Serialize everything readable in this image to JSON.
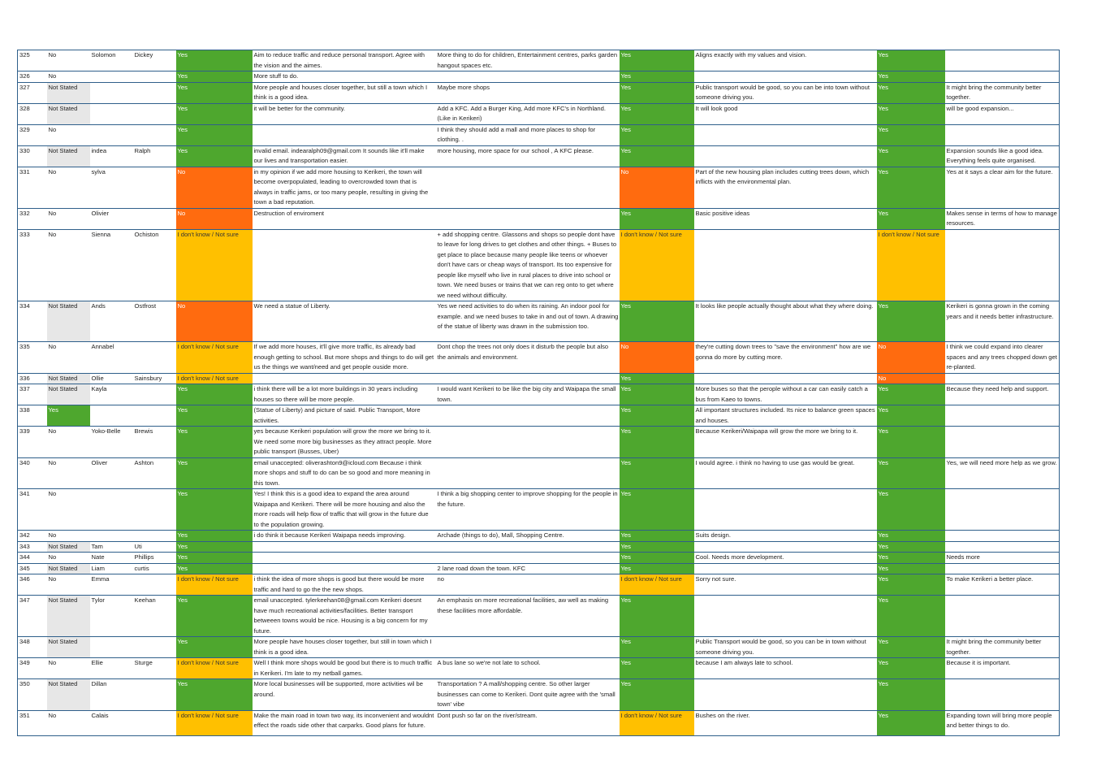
{
  "colors": {
    "yes": "#4ea72e",
    "no": "#ff6b0f",
    "unsure": "#ffc000",
    "not_stated": "#e7e7e7",
    "border": "#2f5f8a"
  },
  "rows": [
    {
      "c": [
        "325",
        "No",
        "Solomon",
        "Dickey",
        "Yes",
        "Aim to reduce traffic and reduce personal transport. Agree with the vision and the aimes.",
        "More thing to do for children, Entertainment centres, parks garden hangout spaces etc.",
        "Yes",
        "Aligns exactly with my values and vision.",
        "Yes",
        ""
      ]
    },
    {
      "c": [
        "326",
        "No",
        "",
        "",
        "Yes",
        "More stuff to do.",
        "",
        "Yes",
        "",
        "Yes",
        ""
      ]
    },
    {
      "c": [
        "327",
        "Not Stated",
        "",
        "",
        "Yes",
        "More people and houses closer together, but still a town which I think is a good idea.",
        "Maybe more shops",
        "Yes",
        "Public transport would be good, so you can be into town without someone driving you.",
        "Yes",
        "It might bring the community better together."
      ]
    },
    {
      "c": [
        "328",
        "Not Stated",
        "",
        "",
        "Yes",
        "it will be better for the community.",
        "Add a KFC. Add a Burger King, Add more KFC's in Northland. (Like in Kerikeri)",
        "Yes",
        "It will look good",
        "Yes",
        "will be good expansion..."
      ]
    },
    {
      "c": [
        "329",
        "No",
        "",
        "",
        "Yes",
        "",
        "I think they should add a mall and more places to shop for clothing. .",
        "Yes",
        "",
        "Yes",
        ""
      ]
    },
    {
      "c": [
        "330",
        "Not Stated",
        "indea",
        "Ralph",
        "Yes",
        "invalid email. indearalph09@gmail.com It sounds like it'll make our lives and transportation easier.",
        "more housing, more space for our school , A KFC please.",
        "Yes",
        "",
        "Yes",
        "Expansion sounds like a good idea. Everything feels quite organised."
      ]
    },
    {
      "c": [
        "331",
        "No",
        "sylva",
        "",
        "No",
        "in my opinion if we add more housing to Kerikeri, the town will become overpopulated, leading to overcrowded town that is always in traffic jams, or too many people, resulting in giving the town a bad reputation.",
        "",
        "No",
        "Part of the new housing plan includes cutting trees down, which inflicts with the environmental plan.",
        "Yes",
        "Yes at it says a clear aim for the future."
      ]
    },
    {
      "c": [
        "332",
        "No",
        "Olivier",
        "",
        "No",
        "Destruction of enviroment",
        "",
        "Yes",
        "Basic positive ideas",
        "Yes",
        "Makes sense in terms of how to manage resources."
      ]
    },
    {
      "c": [
        "333",
        "No",
        "Sienna",
        "Ochiston",
        "I don't know / Not sure",
        "",
        "+ add shopping centre. Glassons and shops so people dont have to leave for long drives to get clothes and other things. + Buses to get place to place because many people like teens or whoever don't have cars or cheap ways of transport. Its too expensive for people like myself who live in rural places to drive into school or town. We need buses or trains that we can reg onto to get where we need without difficulty.",
        "I don't know / Not sure",
        "",
        "I don't know / Not sure",
        ""
      ]
    },
    {
      "c": [
        "334",
        "Not Stated",
        "Ands",
        "Ostfrost",
        "No",
        "We need a statue of Liberty.",
        "Yes we need activities to do when its raining. An indoor pool for example. and we need buses to take in and out of town. A drawing of the statue of liberty was drawn in the submission too.",
        "Yes",
        "It looks like people actually thought about what they where doing.",
        "Yes",
        "Kerikeri is gonna grown in the coming years and it needs better infrastructure."
      ]
    },
    {
      "c": [
        "335",
        "No",
        "Annabel",
        "",
        "I don't know / Not sure",
        "If we add more houses, it'll give more traffic, its already bad enough getting to school. But more shops and things to do will get us the things we want/need and get people ouside more.",
        "Dont chop the trees not only does it disturb the people but also the animals and environment.",
        "No",
        "they're cutting down trees to \"save the environment\" how are we gonna do more by cutting more.",
        "No",
        "I think we could expand into clearer spaces and any trees chopped down get re-planted."
      ]
    },
    {
      "c": [
        "336",
        "Not Stated",
        "Ollie",
        "Sainsbury",
        "I don't know / Not sure",
        "",
        "",
        "Yes",
        "",
        "No",
        ""
      ]
    },
    {
      "c": [
        "337",
        "Not Stated",
        "Kayla",
        "",
        "Yes",
        "i think there will be a lot more buildings in 30 years including houses so there will be more people.",
        "I would want Kerikeri to be like the big city and Waipapa the small town.",
        "Yes",
        "More buses so that the perople without a car can easily catch a bus from Kaeo to towns.",
        "Yes",
        "Because they need help and support."
      ]
    },
    {
      "c": [
        "338",
        "Yes",
        "",
        "",
        "Yes",
        "(Statue of Liberty) and picture of said. Public Transport, More activities.",
        "",
        "Yes",
        "All important structures included. Its nice to balance green spaces and houses.",
        "Yes",
        ""
      ]
    },
    {
      "c": [
        "339",
        "No",
        "Yoko-Belle",
        "Brewis",
        "Yes",
        "yes because Kerikeri population will grow the more we bring to it. We need some more big businesses as they attract people. More public transport (Busses, Uber)",
        "",
        "Yes",
        "Because Kerikeri/Waipapa will grow the more we bring to it.",
        "Yes",
        ""
      ]
    },
    {
      "c": [
        "340",
        "No",
        "Oliver",
        "Ashton",
        "Yes",
        "email unaccepted: oliverashton9@icloud.com Because i think more shops and stuff to do can be so good and more meaning in this town.",
        "",
        "Yes",
        "I would agree. i think no having to use gas would be great.",
        "Yes",
        "Yes, we will need more help as we grow."
      ]
    },
    {
      "c": [
        "341",
        "No",
        "",
        "",
        "Yes",
        "Yes! I think this is a good idea to expand the area around Waipapa and Kerikeri. There will be more housing and also the more roads will help flow of traffic that will grow in the future due to the population growing.",
        "I think a big shopping center to improve shopping for the people in the future.",
        "Yes",
        "",
        "Yes",
        ""
      ]
    },
    {
      "c": [
        "342",
        "No",
        "",
        "",
        "Yes",
        "i do think it because Kerikeri Waipapa needs improving.",
        "Archade (things to do), Mall, Shopping Centre.",
        "Yes",
        "Suits design.",
        "Yes",
        ""
      ]
    },
    {
      "c": [
        "343",
        "Not Stated",
        "Tam",
        "Uti",
        "Yes",
        "",
        "",
        "Yes",
        "",
        "Yes",
        ""
      ]
    },
    {
      "c": [
        "344",
        "No",
        "Nate",
        "Phillips",
        "Yes",
        "",
        "",
        "Yes",
        "Cool. Needs more development.",
        "Yes",
        "Needs more"
      ]
    },
    {
      "c": [
        "345",
        "Not Stated",
        "Liam",
        "curtis",
        "Yes",
        "",
        "2 lane road down the town. KFC",
        "Yes",
        "",
        "Yes",
        ""
      ]
    },
    {
      "c": [
        "346",
        "No",
        "Emma",
        "",
        "I don't know / Not sure",
        "i think the idea of more shops is good but there would be more traffic and hard to go the the new shops.",
        "no",
        "I don't know / Not sure",
        "Sorry not sure.",
        "Yes",
        "To make Kerikeri a better place."
      ]
    },
    {
      "c": [
        "347",
        "Not Stated",
        "Tylor",
        "Keehan",
        "Yes",
        "email unaccepted. tylerkeehan08@gmail.com Kerikeri doesnt have much recreational activities/facilities. Better transport betweeen towns would be nice. Housing is a big concern for my future.",
        "An emphasis on more recreational facilities, aw well as making these facilities more affordable.",
        "Yes",
        "",
        "Yes",
        ""
      ]
    },
    {
      "c": [
        "348",
        "Not Stated",
        "",
        "",
        "Yes",
        "More people have houses closer together, but still in town which I think is a good idea.",
        "",
        "Yes",
        "Public Transport would be good, so you can be in town without someone driving you.",
        "Yes",
        "It might bring the community better together."
      ]
    },
    {
      "c": [
        "349",
        "No",
        "Ellie",
        "Sturge",
        "I don't know / Not sure",
        "Well I think more shops would be good but there is to much traffic in Kerikeri. I'm late to my netball games.",
        "A bus lane so we're not late to school.",
        "Yes",
        "because I am always late to school.",
        "Yes",
        "Because it is important."
      ]
    },
    {
      "c": [
        "350",
        "Not Stated",
        "Dillan",
        "",
        "Yes",
        "More local businesses will be supported, more activities wil be around.",
        "Transportation ? A mall/shopping centre. So other larger businesses can come to Kerikeri. Dont quite agree with the 'small town' vibe",
        "Yes",
        "",
        "Yes",
        ""
      ]
    },
    {
      "c": [
        "351",
        "No",
        "Calais",
        "",
        "I don't know / Not sure",
        "Make the main road in town two way, its inconvenient and wouldnt effect the roads side other that carparks. Good plans for future.",
        "Dont push so far on the river/stream.",
        "I don't know / Not sure",
        "Bushes on the river.",
        "Yes",
        "Expanding town will bring more people and better things to do."
      ]
    }
  ]
}
